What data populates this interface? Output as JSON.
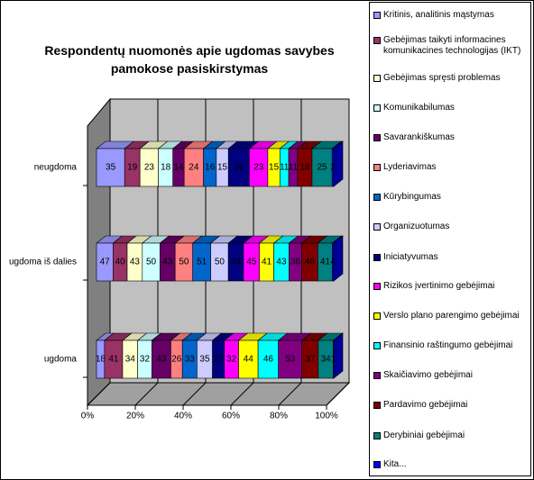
{
  "chart_data": {
    "type": "bar",
    "orientation": "horizontal",
    "stacking": "percent",
    "three_d": true,
    "title": "Respondentų nuomonės apie ugdomas savybes pamokose pasiskirstymas",
    "categories": [
      "neugdoma",
      "ugdoma iš dalies",
      "ugdoma"
    ],
    "xlim": [
      0,
      100
    ],
    "xticks": [
      {
        "value": 0,
        "label": "0%"
      },
      {
        "value": 20,
        "label": "20%"
      },
      {
        "value": 40,
        "label": "40%"
      },
      {
        "value": 60,
        "label": "60%"
      },
      {
        "value": 80,
        "label": "80%"
      },
      {
        "value": 100,
        "label": "100%"
      }
    ],
    "grid": true,
    "legend": "right",
    "series": [
      {
        "name": "Kritinis, analitinis mąstymas",
        "color": "#9999ff",
        "values": [
          35,
          47,
          18
        ]
      },
      {
        "name": "Gebėjimas taikyti informacines komunikacines technologijas (IKT)",
        "color": "#993366",
        "values": [
          19,
          40,
          41
        ]
      },
      {
        "name": "Gebėjimas spręsti problemas",
        "color": "#ffffcc",
        "values": [
          23,
          43,
          34
        ]
      },
      {
        "name": "Komunikabilumas",
        "color": "#ccffff",
        "values": [
          18,
          50,
          32
        ]
      },
      {
        "name": "Savarankiškumas",
        "color": "#660066",
        "values": [
          14,
          43,
          43
        ]
      },
      {
        "name": "Lyderiavimas",
        "color": "#ff8080",
        "values": [
          24,
          50,
          26
        ]
      },
      {
        "name": "Kūrybingumas",
        "color": "#0066cc",
        "values": [
          16,
          51,
          33
        ]
      },
      {
        "name": "Organizuotumas",
        "color": "#ccccff",
        "values": [
          15,
          50,
          35
        ]
      },
      {
        "name": "Iniciatyvumas",
        "color": "#000080",
        "values": [
          26,
          43,
          27
        ]
      },
      {
        "name": "Rizikos įvertinimo gebėjimai",
        "color": "#ff00ff",
        "values": [
          23,
          45,
          32
        ]
      },
      {
        "name": "Verslo plano parengimo gebėjimai",
        "color": "#ffff00",
        "values": [
          15,
          41,
          44
        ]
      },
      {
        "name": "Finansinio raštingumo gebėjimai",
        "color": "#00ffff",
        "values": [
          11,
          43,
          46
        ]
      },
      {
        "name": "Skaičiavimo gebėjimai",
        "color": "#800080",
        "values": [
          11,
          36,
          53
        ]
      },
      {
        "name": "Pardavimo gebėjimai",
        "color": "#800000",
        "values": [
          18,
          46,
          37
        ]
      },
      {
        "name": "Derybiniai gebėjimai",
        "color": "#008080",
        "values": [
          25,
          41,
          34
        ]
      },
      {
        "name": "Kita...",
        "color": "#0000ff",
        "values": [
          2,
          4,
          1
        ]
      }
    ]
  }
}
